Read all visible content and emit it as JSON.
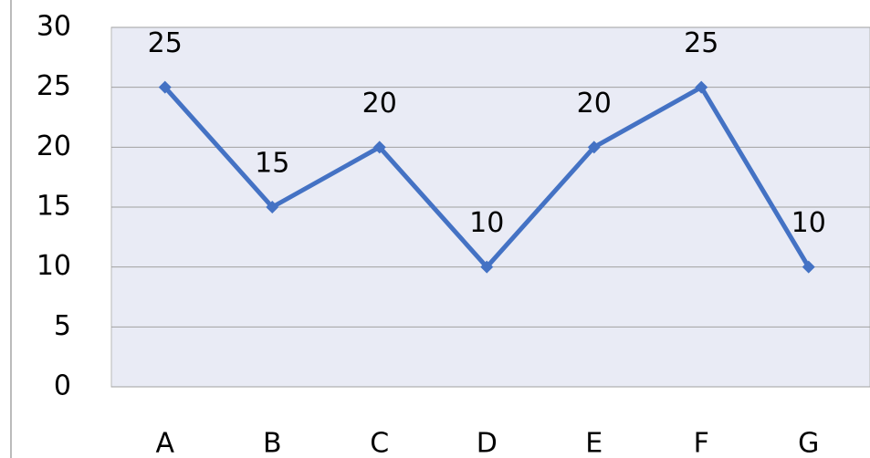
{
  "chart_data": {
    "type": "line",
    "categories": [
      "A",
      "B",
      "C",
      "D",
      "E",
      "F",
      "G"
    ],
    "values": [
      25,
      15,
      20,
      10,
      20,
      25,
      10
    ],
    "color": "#4472c4",
    "ylim": [
      0,
      30
    ],
    "yticks": [
      0,
      5,
      10,
      15,
      20,
      25,
      30
    ],
    "grid": true
  }
}
